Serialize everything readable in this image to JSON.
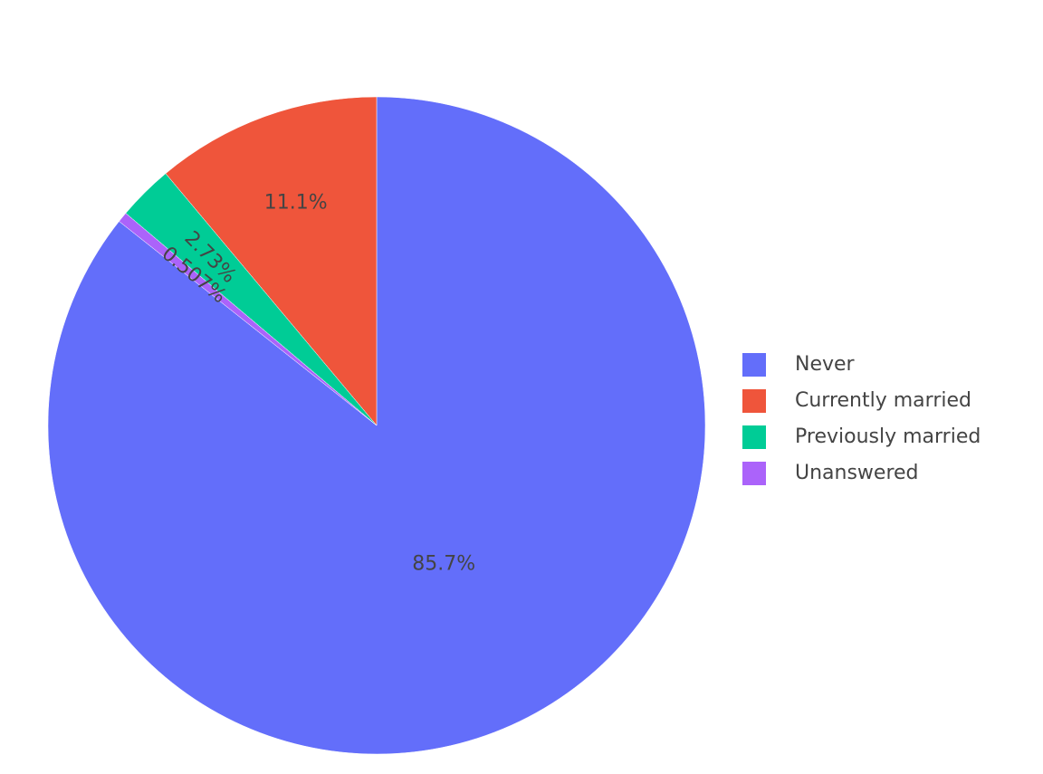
{
  "chart_data": {
    "type": "pie",
    "categories": [
      "Never",
      "Currently married",
      "Previously married",
      "Unanswered"
    ],
    "values": [
      85.7,
      11.1,
      2.73,
      0.507
    ],
    "value_labels": [
      "85.7%",
      "11.1%",
      "2.73%",
      "0.507%"
    ],
    "colors": [
      "#636efa",
      "#ef553b",
      "#00cc96",
      "#ab63fa"
    ],
    "direction": "counterclockwise",
    "legend": "right"
  }
}
